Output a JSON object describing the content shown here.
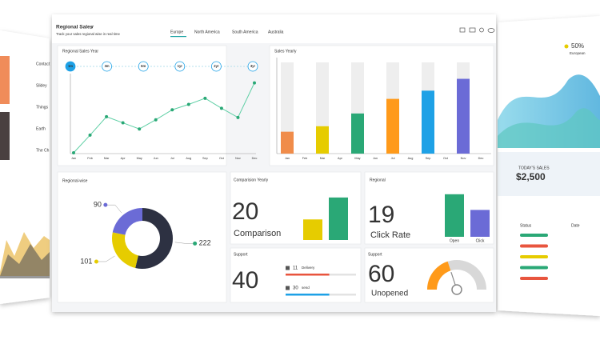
{
  "header": {
    "title": "Regional Sales",
    "subtitle": "Track your sales regional wise in real time",
    "tabs": [
      "Europe",
      "North America",
      "South America",
      "Australia"
    ],
    "active_tab": 0
  },
  "line_chart": {
    "type": "line",
    "title": "Regional Sales Year",
    "ranges": [
      "1m",
      "3m",
      "6m",
      "1yr",
      "2yr",
      "3yr"
    ],
    "active_range": 0,
    "categories": [
      "Jan",
      "Feb",
      "Mar",
      "Apr",
      "May",
      "Jun",
      "Jul",
      "Aug",
      "Sep",
      "Oct",
      "Nov",
      "Dec"
    ],
    "values": [
      0,
      23,
      47,
      39,
      31,
      43,
      56,
      63,
      71,
      58,
      46,
      91
    ],
    "ylim": [
      0,
      100
    ],
    "color": "#5fcfa5"
  },
  "bar_chart": {
    "type": "bar",
    "title": "Sales Yearly",
    "categories": [
      "Jan",
      "Feb",
      "Mar",
      "Apr",
      "May",
      "Jun",
      "Jul",
      "Aug",
      "Sep",
      "Oct",
      "Nov",
      "Dec"
    ],
    "values": [
      24,
      null,
      30,
      null,
      44,
      null,
      60,
      null,
      69,
      null,
      82,
      null
    ],
    "colors": [
      "#f08c4a",
      "#e6cc00",
      "#2aa876",
      "#ff9a1a",
      "#1ea1e6",
      "#6b6bd6"
    ],
    "ylim": [
      0,
      100
    ]
  },
  "donut": {
    "type": "pie",
    "title": "Regional-wise",
    "values": [
      222,
      101,
      90
    ],
    "colors": [
      "#2d3142",
      "#e6cc00",
      "#6b6bd6"
    ],
    "dot_colors": [
      "#2aa876",
      "#e6cc00",
      "#6b6bd6"
    ]
  },
  "comparison": {
    "title": "Comparision Yearly",
    "value": 20,
    "label": "Comparison",
    "values": [
      30,
      62
    ],
    "colors": [
      "#e6cc00",
      "#2aa876"
    ],
    "ylim": [
      0,
      70
    ]
  },
  "regional": {
    "title": "Regional",
    "value": 19,
    "label": "Click Rate",
    "categories": [
      "Open",
      "Click"
    ],
    "values": [
      57,
      36
    ],
    "colors": [
      "#2aa876",
      "#6b6bd6"
    ],
    "ylim": [
      0,
      60
    ]
  },
  "support": {
    "title": "Support",
    "value": 40,
    "items": [
      {
        "count": 11,
        "label": "Delivery",
        "progress": 62,
        "color": "#e8553e"
      },
      {
        "count": 30,
        "label": "send",
        "progress": 62,
        "color": "#1ea1e6"
      }
    ],
    "xlim": [
      0,
      100
    ]
  },
  "support_gauge": {
    "title": "Support",
    "value": 60,
    "label": "Unopened",
    "gauge": 40,
    "gauge_lim": [
      0,
      100
    ],
    "color": "#ff9a1a"
  },
  "side_left": {
    "labels": [
      "Contact",
      "Slidey",
      "Things",
      "Earth",
      "The Ch"
    ]
  },
  "side_right": {
    "percent": "50%",
    "region": "European",
    "today_label": "TODAY'S SALES",
    "today_value": "$2,500",
    "table_headers": [
      "Status",
      "Date"
    ]
  }
}
